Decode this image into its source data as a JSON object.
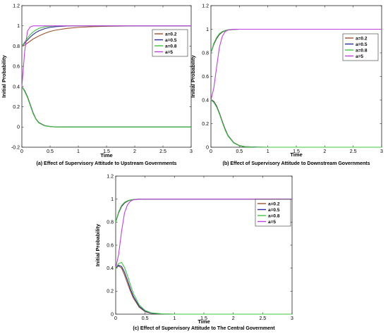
{
  "chart_data": [
    {
      "type": "line",
      "caption": "(a) Effect of Supervisory Attitude to Upstream Governments",
      "xlabel": "Time",
      "ylabel": "Initial Probability",
      "xlim": [
        0,
        3
      ],
      "ylim": [
        -0.2,
        1.2
      ],
      "xticks": [
        "0",
        "0.5",
        "1",
        "1.5",
        "2",
        "2.5",
        "3"
      ],
      "yticks": [
        "-0.2",
        "0",
        "0.2",
        "0.4",
        "0.6",
        "0.8",
        "1",
        "1.2"
      ],
      "legend_position": "top-right",
      "x": [
        0,
        0.05,
        0.1,
        0.15,
        0.2,
        0.25,
        0.3,
        0.4,
        0.5,
        0.6,
        0.8,
        1.0,
        1.25,
        1.5,
        2.0,
        2.5,
        3.0
      ],
      "series": [
        {
          "name": "a=0.2",
          "color": "#a0522d",
          "values": [
            0.8,
            0.81,
            0.83,
            0.85,
            0.87,
            0.885,
            0.9,
            0.925,
            0.945,
            0.958,
            0.975,
            0.985,
            0.992,
            0.996,
            0.999,
            1.0,
            1.0
          ]
        },
        {
          "name": "a=0.5",
          "color": "#2a2aa0",
          "values": [
            0.8,
            0.83,
            0.86,
            0.89,
            0.915,
            0.935,
            0.95,
            0.972,
            0.985,
            0.992,
            0.998,
            1.0,
            1.0,
            1.0,
            1.0,
            1.0,
            1.0
          ]
        },
        {
          "name": "a=0.8",
          "color": "#3cc83c",
          "values": [
            0.8,
            0.84,
            0.88,
            0.915,
            0.94,
            0.96,
            0.975,
            0.99,
            0.996,
            0.999,
            1.0,
            1.0,
            1.0,
            1.0,
            1.0,
            1.0,
            1.0
          ]
        },
        {
          "name": "a=5",
          "color": "#c040e0",
          "values": [
            0.4,
            0.75,
            0.95,
            0.99,
            1.0,
            1.0,
            1.0,
            1.0,
            1.0,
            1.0,
            1.0,
            1.0,
            1.0,
            1.0,
            1.0,
            1.0,
            1.0
          ]
        },
        {
          "name": "",
          "color": "#a0522d",
          "values": [
            0.4,
            0.36,
            0.3,
            0.22,
            0.14,
            0.08,
            0.045,
            0.015,
            0.005,
            0.001,
            0.0,
            0.0,
            0.0,
            0.0,
            0.0,
            0.0,
            0.0
          ]
        },
        {
          "name": "",
          "color": "#2a2aa0",
          "values": [
            0.4,
            0.355,
            0.295,
            0.215,
            0.135,
            0.077,
            0.042,
            0.013,
            0.004,
            0.001,
            0.0,
            0.0,
            0.0,
            0.0,
            0.0,
            0.0,
            0.0
          ]
        },
        {
          "name": "",
          "color": "#3cc83c",
          "values": [
            0.4,
            0.35,
            0.29,
            0.21,
            0.13,
            0.075,
            0.04,
            0.012,
            0.004,
            0.001,
            0.0,
            0.0,
            0.0,
            0.0,
            0.0,
            0.0,
            0.0
          ]
        }
      ]
    },
    {
      "type": "line",
      "caption": "(b) Effect of Supervisory Attitude to Downstream Governments",
      "xlabel": "Time",
      "ylabel": "Initial Probability",
      "xlim": [
        0,
        3
      ],
      "ylim": [
        0,
        1.2
      ],
      "xticks": [
        "0",
        "0.5",
        "1",
        "1.5",
        "2",
        "2.5",
        "3"
      ],
      "yticks": [
        "0",
        "0.2",
        "0.4",
        "0.6",
        "0.8",
        "1",
        "1.2"
      ],
      "legend_position": "top-right",
      "x": [
        0,
        0.05,
        0.1,
        0.15,
        0.2,
        0.25,
        0.3,
        0.4,
        0.5,
        0.6,
        0.8,
        1.0,
        1.5,
        2.0,
        2.5,
        3.0
      ],
      "series": [
        {
          "name": "a=0.2",
          "color": "#a0522d",
          "values": [
            0.8,
            0.87,
            0.92,
            0.955,
            0.975,
            0.987,
            0.993,
            0.998,
            1.0,
            1.0,
            1.0,
            1.0,
            1.0,
            1.0,
            1.0,
            1.0
          ]
        },
        {
          "name": "a=0.5",
          "color": "#2a2aa0",
          "values": [
            0.8,
            0.875,
            0.925,
            0.96,
            0.978,
            0.989,
            0.994,
            0.999,
            1.0,
            1.0,
            1.0,
            1.0,
            1.0,
            1.0,
            1.0,
            1.0
          ]
        },
        {
          "name": "a=0.8",
          "color": "#3cc83c",
          "values": [
            0.8,
            0.88,
            0.93,
            0.963,
            0.98,
            0.99,
            0.995,
            0.999,
            1.0,
            1.0,
            1.0,
            1.0,
            1.0,
            1.0,
            1.0,
            1.0
          ]
        },
        {
          "name": "a=5",
          "color": "#c040e0",
          "values": [
            0.4,
            0.5,
            0.68,
            0.85,
            0.94,
            0.98,
            0.994,
            1.0,
            1.0,
            1.0,
            1.0,
            1.0,
            1.0,
            1.0,
            1.0,
            1.0
          ]
        },
        {
          "name": "",
          "color": "#a0522d",
          "values": [
            0.4,
            0.39,
            0.35,
            0.29,
            0.22,
            0.155,
            0.1,
            0.04,
            0.014,
            0.005,
            0.001,
            0.0,
            0.0,
            0.0,
            0.0,
            0.0
          ]
        },
        {
          "name": "",
          "color": "#2a2aa0",
          "values": [
            0.4,
            0.385,
            0.345,
            0.285,
            0.215,
            0.15,
            0.097,
            0.038,
            0.013,
            0.004,
            0.001,
            0.0,
            0.0,
            0.0,
            0.0,
            0.0
          ]
        },
        {
          "name": "",
          "color": "#3cc83c",
          "values": [
            0.4,
            0.38,
            0.34,
            0.28,
            0.21,
            0.145,
            0.094,
            0.036,
            0.012,
            0.004,
            0.0,
            0.0,
            0.0,
            0.0,
            0.0,
            0.0
          ]
        }
      ]
    },
    {
      "type": "line",
      "caption": "(c) Effect of Supervisory Attitude to The Central Government",
      "xlabel": "Time",
      "ylabel": "Initial Probability",
      "xlim": [
        0,
        3
      ],
      "ylim": [
        0,
        1.2
      ],
      "xticks": [
        "0",
        "0.5",
        "1",
        "1.5",
        "2",
        "2.5",
        "3"
      ],
      "yticks": [
        "0",
        "0.2",
        "0.4",
        "0.6",
        "0.8",
        "1",
        "1.2"
      ],
      "legend_position": "top-right",
      "x": [
        0,
        0.05,
        0.1,
        0.15,
        0.2,
        0.25,
        0.3,
        0.4,
        0.5,
        0.6,
        0.8,
        1.0,
        1.5,
        2.0,
        2.5,
        3.0
      ],
      "series": [
        {
          "name": "a=0.2",
          "color": "#a0522d",
          "values": [
            0.8,
            0.88,
            0.935,
            0.965,
            0.982,
            0.991,
            0.995,
            0.999,
            1.0,
            1.0,
            1.0,
            1.0,
            1.0,
            1.0,
            1.0,
            1.0
          ]
        },
        {
          "name": "a=0.5",
          "color": "#2a2aa0",
          "values": [
            0.8,
            0.885,
            0.94,
            0.968,
            0.984,
            0.992,
            0.996,
            0.999,
            1.0,
            1.0,
            1.0,
            1.0,
            1.0,
            1.0,
            1.0,
            1.0
          ]
        },
        {
          "name": "a=0.8",
          "color": "#3cc83c",
          "values": [
            0.8,
            0.89,
            0.945,
            0.972,
            0.986,
            0.993,
            0.997,
            1.0,
            1.0,
            1.0,
            1.0,
            1.0,
            1.0,
            1.0,
            1.0,
            1.0
          ]
        },
        {
          "name": "a=5",
          "color": "#c040e0",
          "values": [
            0.4,
            0.52,
            0.72,
            0.88,
            0.95,
            0.982,
            0.994,
            1.0,
            1.0,
            1.0,
            1.0,
            1.0,
            1.0,
            1.0,
            1.0,
            1.0
          ]
        },
        {
          "name": "",
          "color": "#a0522d",
          "values": [
            0.4,
            0.42,
            0.4,
            0.34,
            0.27,
            0.2,
            0.14,
            0.06,
            0.022,
            0.008,
            0.001,
            0.0,
            0.0,
            0.0,
            0.0,
            0.0
          ]
        },
        {
          "name": "",
          "color": "#2a2aa0",
          "values": [
            0.4,
            0.425,
            0.415,
            0.365,
            0.295,
            0.22,
            0.155,
            0.068,
            0.026,
            0.009,
            0.001,
            0.0,
            0.0,
            0.0,
            0.0,
            0.0
          ]
        },
        {
          "name": "",
          "color": "#3cc83c",
          "values": [
            0.4,
            0.44,
            0.45,
            0.405,
            0.335,
            0.255,
            0.18,
            0.08,
            0.032,
            0.012,
            0.002,
            0.0,
            0.0,
            0.0,
            0.0,
            0.0
          ]
        }
      ]
    }
  ]
}
